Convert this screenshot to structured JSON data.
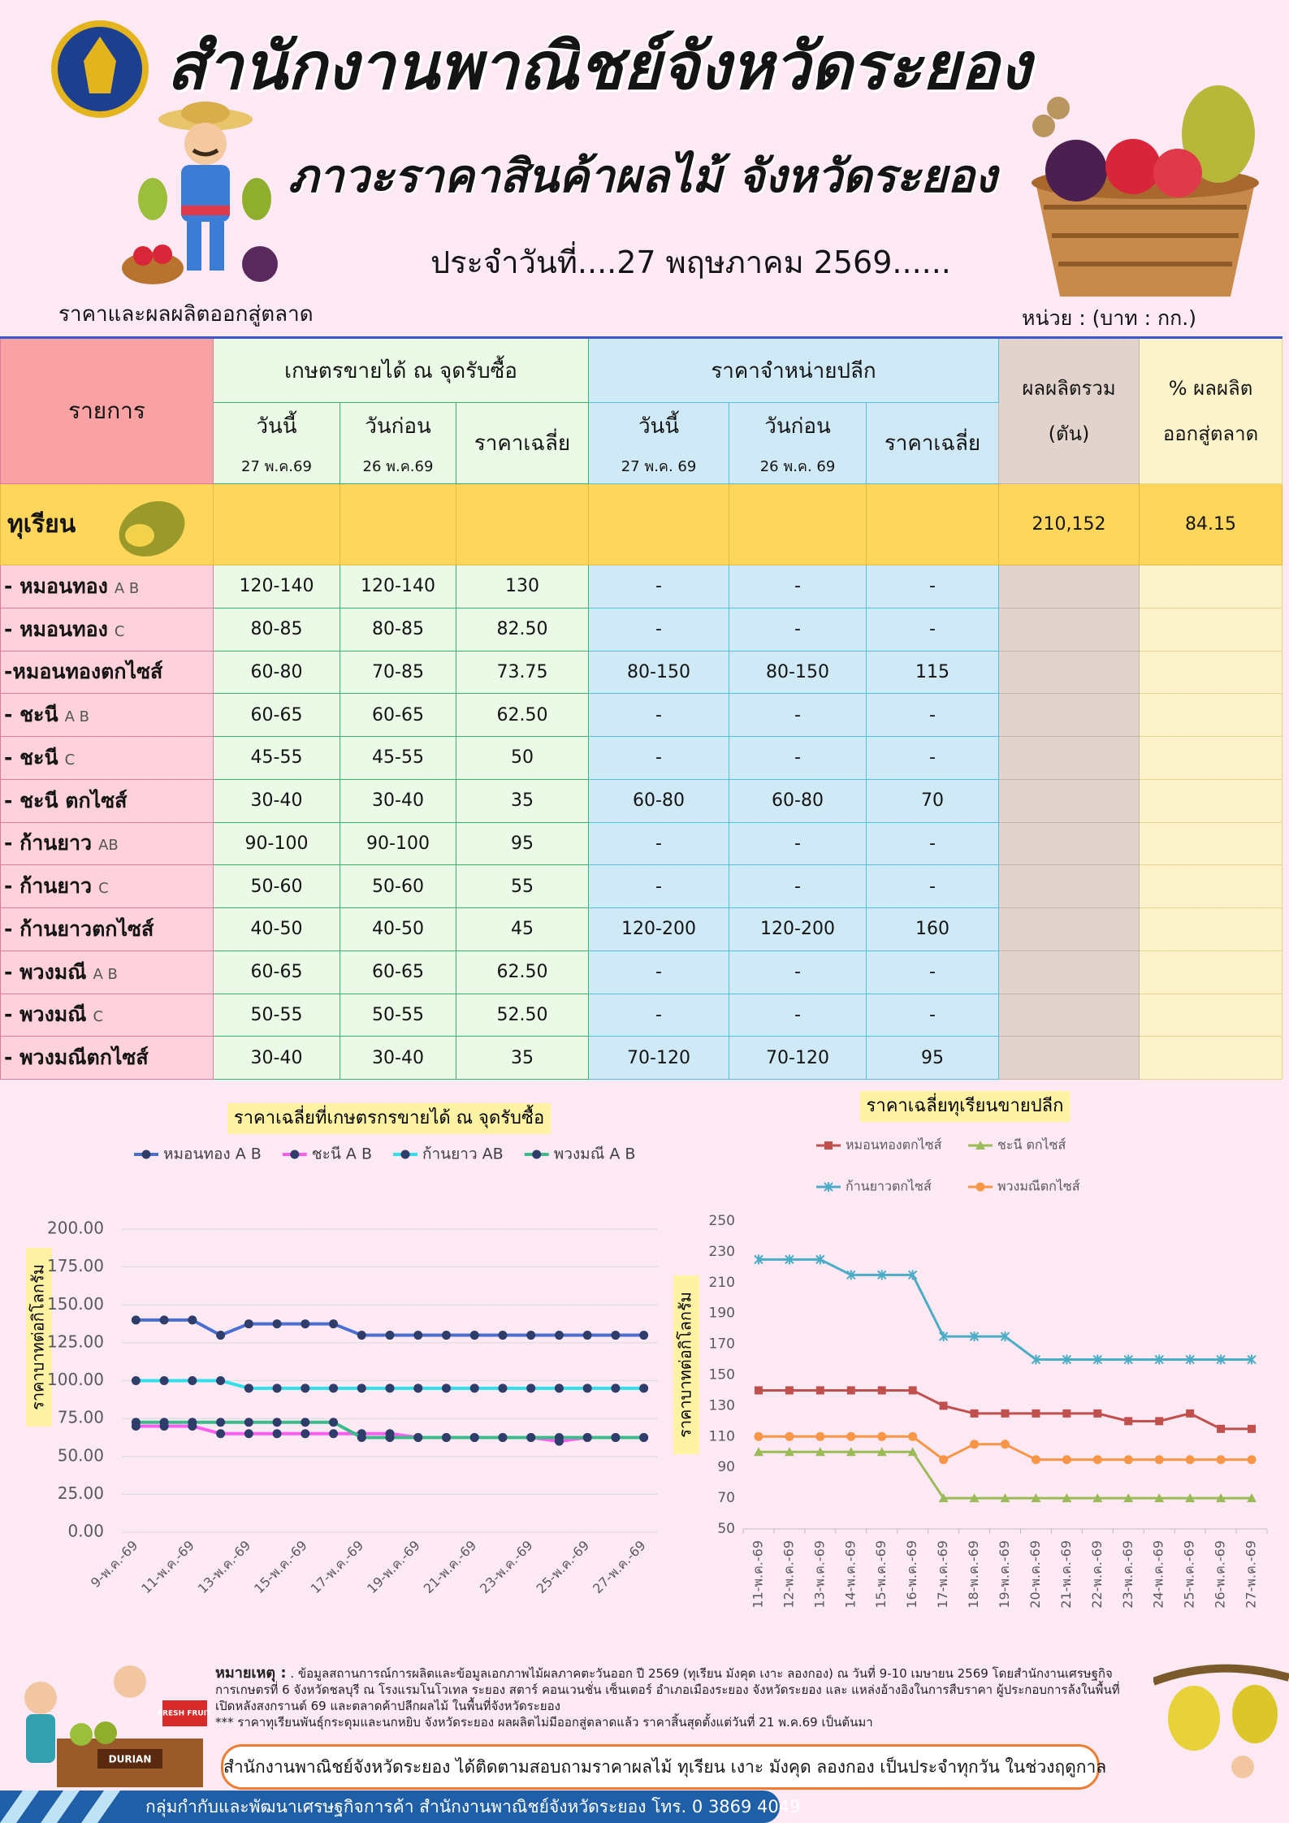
{
  "header": {
    "title": "สำนักงานพาณิชย์จังหวัดระยอง",
    "subtitle": "ภาวะราคาสินค้าผลไม้ จังหวัดระยอง",
    "date": "ประจำวันที่....27 พฤษภาคม 2569......",
    "left_caption": "ราคาและผลผลิตออกสู่ตลาด",
    "unit": "หน่วย : (บาท : กก.)"
  },
  "table": {
    "head": {
      "item": "รายการ",
      "farm": "เกษตรขายได้ ณ จุดรับซื้อ",
      "retail": "ราคาจำหน่ายปลีก",
      "output": [
        "ผลผลิตรวม",
        "(ตัน)"
      ],
      "share": [
        "% ผลผลิต",
        "ออกสู่ตลาด"
      ],
      "farm_cols": [
        {
          "label": "วันนี้",
          "date": "27 พ.ค.69"
        },
        {
          "label": "วันก่อน",
          "date": "26 พ.ค.69"
        },
        {
          "label": "ราคาเฉลี่ย"
        }
      ],
      "retail_cols": [
        {
          "label": "วันนี้",
          "date": "27 พ.ค. 69"
        },
        {
          "label": "วันก่อน",
          "date": "26 พ.ค. 69"
        },
        {
          "label": "ราคาเฉลี่ย"
        }
      ]
    },
    "group": {
      "name": "ทุเรียน",
      "output": "210,152",
      "share": "84.15"
    },
    "rows": [
      {
        "name": "- หมอนทอง",
        "grade": "A B",
        "cells": [
          "120-140",
          "120-140",
          "130",
          "-",
          "-",
          "-"
        ]
      },
      {
        "name": "- หมอนทอง",
        "grade": "C",
        "cells": [
          "80-85",
          "80-85",
          "82.50",
          "-",
          "-",
          "-"
        ]
      },
      {
        "name": "-หมอนทองตกไซส์",
        "cells": [
          "60-80",
          "70-85",
          "73.75",
          "80-150",
          "80-150",
          "115"
        ]
      },
      {
        "name": "- ชะนี",
        "grade": "A B",
        "cells": [
          "60-65",
          "60-65",
          "62.50",
          "-",
          "-",
          "-"
        ]
      },
      {
        "name": "- ชะนี",
        "grade": "C",
        "cells": [
          "45-55",
          "45-55",
          "50",
          "-",
          "-",
          "-"
        ]
      },
      {
        "name": "- ชะนี ตกไซส์",
        "cells": [
          "30-40",
          "30-40",
          "35",
          "60-80",
          "60-80",
          "70"
        ]
      },
      {
        "name": "- ก้านยาว",
        "grade": "AB",
        "cells": [
          "90-100",
          "90-100",
          "95",
          "-",
          "-",
          "-"
        ]
      },
      {
        "name": "- ก้านยาว",
        "grade": "C",
        "cells": [
          "50-60",
          "50-60",
          "55",
          "-",
          "-",
          "-"
        ]
      },
      {
        "name": "- ก้านยาวตกไซส์",
        "cells": [
          "40-50",
          "40-50",
          "45",
          "120-200",
          "120-200",
          "160"
        ]
      },
      {
        "name": "- พวงมณี",
        "grade": "A B",
        "cells": [
          "60-65",
          "60-65",
          "62.50",
          "-",
          "-",
          "-"
        ]
      },
      {
        "name": "- พวงมณี",
        "grade": "C",
        "cells": [
          "50-55",
          "50-55",
          "52.50",
          "-",
          "-",
          "-"
        ]
      },
      {
        "name": "- พวงมณีตกไซส์",
        "cells": [
          "30-40",
          "30-40",
          "35",
          "70-120",
          "70-120",
          "95"
        ]
      }
    ]
  },
  "chart_data": [
    {
      "type": "line",
      "title": "ราคาเฉลี่ยที่เกษตรกรขายได้ ณ จุดรับซื้อ",
      "y_label": "ราคาบาทต่อกิโลกรัม",
      "categories": [
        "9-พ.ค.-69",
        null,
        "11-พ.ค.-69",
        null,
        "13-พ.ค.-69",
        null,
        "15-พ.ค.-69",
        null,
        "17-พ.ค.-69",
        null,
        "19-พ.ค.-69",
        null,
        "21-พ.ค.-69",
        null,
        "23-พ.ค.-69",
        null,
        "25-พ.ค.-69",
        null,
        "27-พ.ค.-69"
      ],
      "ylim": [
        0,
        200
      ],
      "yticks": [
        {
          "value": 0,
          "label": "0.00"
        },
        {
          "value": 25,
          "label": "25.00"
        },
        {
          "value": 50,
          "label": "50.00"
        },
        {
          "value": 75,
          "label": "75.00"
        },
        {
          "value": 100,
          "label": "100.00"
        },
        {
          "value": 125,
          "label": "125.00"
        },
        {
          "value": 150,
          "label": "150.00"
        },
        {
          "value": 175,
          "label": "175.00"
        },
        {
          "value": 200,
          "label": "200.00"
        }
      ],
      "grid": true,
      "legend": "top",
      "marker": "circle",
      "marker_color": "#2f3d6b",
      "series": [
        {
          "name": "หมอนทอง A B",
          "color": "#4a6fd0",
          "values": [
            140,
            140,
            140,
            130,
            137.5,
            137.5,
            137.5,
            137.5,
            130,
            130,
            130,
            130,
            130,
            130,
            130,
            130,
            130,
            130,
            130
          ]
        },
        {
          "name": "ชะนี A B",
          "color": "#ff5cf0",
          "values": [
            70,
            70,
            70,
            65,
            65,
            65,
            65,
            65,
            65,
            65,
            62.5,
            62.5,
            62.5,
            62.5,
            62.5,
            60,
            62.5,
            62.5,
            62.5
          ]
        },
        {
          "name": "ก้านยาว AB",
          "color": "#2fe0e8",
          "values": [
            100,
            100,
            100,
            100,
            95,
            95,
            95,
            95,
            95,
            95,
            95,
            95,
            95,
            95,
            95,
            95,
            95,
            95,
            95
          ]
        },
        {
          "name": "พวงมณี A B",
          "color": "#3dbb8a",
          "values": [
            72.5,
            72.5,
            72.5,
            72.5,
            72.5,
            72.5,
            72.5,
            72.5,
            62.5,
            62.5,
            62.5,
            62.5,
            62.5,
            62.5,
            62.5,
            62.5,
            62.5,
            62.5,
            62.5
          ]
        }
      ]
    },
    {
      "type": "line",
      "title": "ราคาเฉลี่ยทุเรียนขายปลีก",
      "y_label": "ราคาบาทต่อกิโลกรัม",
      "categories": [
        "11-พ.ค.-69",
        "12-พ.ค.-69",
        "13-พ.ค.-69",
        "14-พ.ค.-69",
        "15-พ.ค.-69",
        "16-พ.ค.-69",
        "17-พ.ค.-69",
        "18-พ.ค.-69",
        "19-พ.ค.-69",
        "20-พ.ค.-69",
        "21-พ.ค.-69",
        "22-พ.ค.-69",
        "23-พ.ค.-69",
        "24-พ.ค.-69",
        "25-พ.ค.-69",
        "26-พ.ค.-69",
        "27-พ.ค.-69"
      ],
      "ylim": [
        50,
        250
      ],
      "yticks": [
        50,
        70,
        90,
        110,
        130,
        150,
        170,
        190,
        210,
        230,
        250
      ],
      "grid": false,
      "legend": "top",
      "series": [
        {
          "name": "หมอนทองตกไซส์",
          "color": "#c0504d",
          "marker": "square",
          "values": [
            140,
            140,
            140,
            140,
            140,
            140,
            130,
            125,
            125,
            125,
            125,
            125,
            120,
            120,
            125,
            115,
            115
          ]
        },
        {
          "name": "ชะนี ตกไซส์",
          "color": "#9bbb59",
          "marker": "triangle",
          "values": [
            100,
            100,
            100,
            100,
            100,
            100,
            70,
            70,
            70,
            70,
            70,
            70,
            70,
            70,
            70,
            70,
            70
          ]
        },
        {
          "name": "ก้านยาวตกไซส์",
          "color": "#4bacc6",
          "marker": "star",
          "values": [
            225,
            225,
            225,
            215,
            215,
            215,
            175,
            175,
            175,
            160,
            160,
            160,
            160,
            160,
            160,
            160,
            160
          ]
        },
        {
          "name": "พวงมณีตกไซส์",
          "color": "#f79646",
          "marker": "circle",
          "values": [
            110,
            110,
            110,
            110,
            110,
            110,
            95,
            105,
            105,
            95,
            95,
            95,
            95,
            95,
            95,
            95,
            95
          ]
        }
      ]
    }
  ],
  "footer": {
    "note_label": "หมายเหตุ :",
    "note": ". ข้อมูลสถานการณ์การผลิตและข้อมูลเอกภาพไม้ผลภาคตะวันออก ปี 2569 (ทุเรียน มังคุด เงาะ ลองกอง) ณ วันที่ 9-10 เมษายน 2569  โดยสำนักงานเศรษฐกิจการเกษตรที่ 6 จังหวัดชลบุรี ณ โรงแรมโนโวเทล ระยอง สตาร์ คอนเวนชั่น เซ็นเตอร์ อำเภอเมืองระยอง จังหวัดระยอง และ แหล่งอ้างอิงในการสืบราคา ผู้ประกอบการล้งในพื้นที่ เปิดหลังสงกรานต์ 69 และตลาดค้าปลีกผลไม้ ในพื้นที่จังหวัดระยอง",
    "note2": "*** ราคาทุเรียนพันธุ์กระดุมและนกหยิบ จังหวัดระยอง ผลผลิตไม่มีออกสู่ตลาดแล้ว ราคาสิ้นสุดตั้งแต่วันที่ 21 พ.ค.69 เป็นต้นมา",
    "banner": "สำนักงานพาณิชย์จังหวัดระยอง ได้ติดตามสอบถามราคาผลไม้ ทุเรียน เงาะ มังคุด ลองกอง เป็นประจำทุกวัน ในช่วงฤดูกาล",
    "contact": "กลุ่มกำกับและพัฒนาเศรษฐกิจการค้า สำนักงานพาณิชย์จังหวัดระยอง โทร. 0 3869 4049",
    "sign": "FRESH FRUIT",
    "cart": "DURIAN"
  }
}
